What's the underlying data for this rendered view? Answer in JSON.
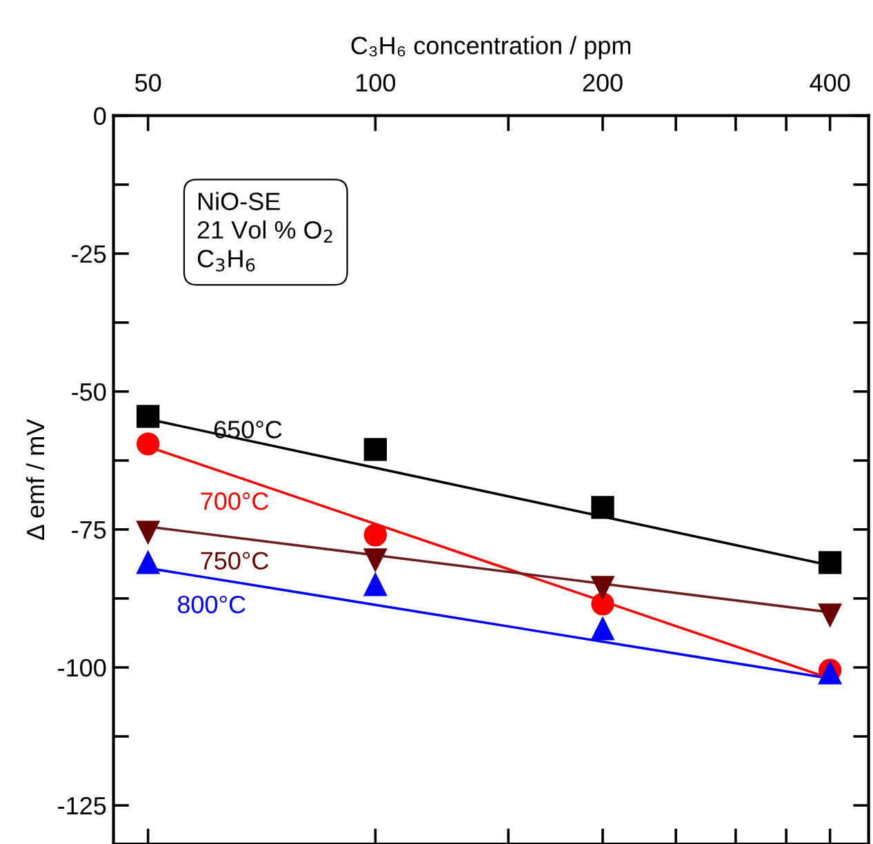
{
  "chart_data": {
    "type": "scatter",
    "xlabel": "C₃H₆ concentration / ppm",
    "ylabel": "Δ emf / mV",
    "annotations": [
      "NiO-SE\n21 Vol % O$_{2}$\nC$_{3}$H$_{6}$"
    ],
    "log": "x",
    "xlim": [
      45,
      450
    ],
    "xticks": [
      50,
      100,
      200,
      400
    ],
    "ylim": [
      -132,
      0
    ],
    "yticks": [
      0,
      -25,
      -50,
      -75,
      -100,
      -125
    ],
    "grid": false,
    "legend": false,
    "series": [
      {
        "name": "650°C",
        "color": "#000000",
        "marker": "square",
        "x": [
          50,
          100,
          200,
          400
        ],
        "values": [
          -54.5,
          -60.5,
          -71,
          -81
        ]
      },
      {
        "name": "700°C",
        "color": "#ff0000",
        "marker": "circle",
        "x": [
          50,
          100,
          200,
          400
        ],
        "values": [
          -59.5,
          -76,
          -88.5,
          -100.5
        ]
      },
      {
        "name": "750°C",
        "color": "#6b0000",
        "marker": "triangle_down",
        "x": [
          50,
          100,
          200,
          400
        ],
        "values": [
          -75.5,
          -80.5,
          -85.5,
          -90.5
        ]
      },
      {
        "name": "800°C",
        "color": "#0000ff",
        "marker": "triangle",
        "x": [
          50,
          100,
          200,
          400
        ],
        "values": [
          -81,
          -85,
          -93,
          -101
        ]
      },
      {
        "type": "line",
        "color": "#000000",
        "x": [
          50,
          400
        ],
        "values": [
          -55,
          -81.5
        ]
      },
      {
        "type": "line",
        "color": "#ff0000",
        "x": [
          50,
          400
        ],
        "values": [
          -60,
          -102
        ]
      },
      {
        "type": "line",
        "color": "#6b2020",
        "x": [
          50,
          400
        ],
        "values": [
          -74.5,
          -90
        ]
      },
      {
        "type": "line",
        "color": "#0000ff",
        "x": [
          50,
          400
        ],
        "values": [
          -82,
          -102
        ]
      }
    ]
  }
}
